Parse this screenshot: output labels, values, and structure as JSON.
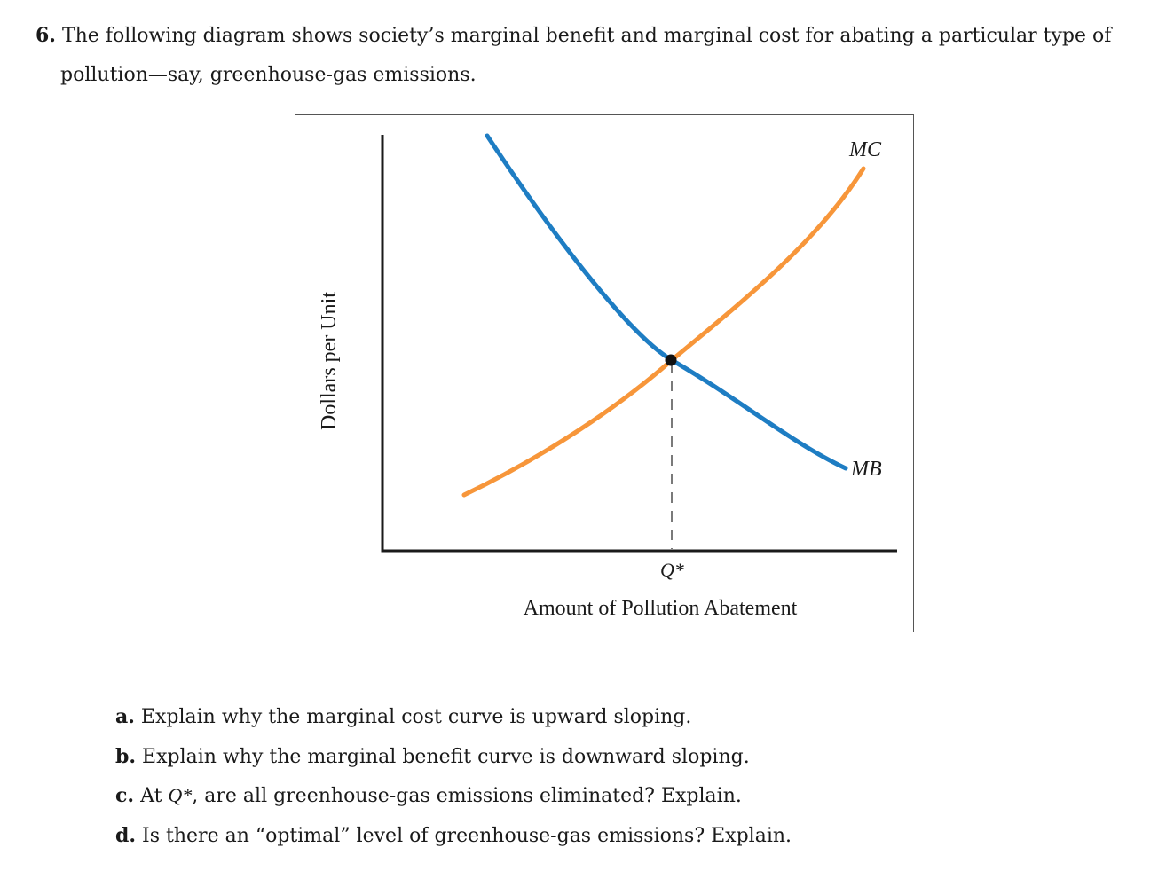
{
  "question": {
    "number": "6.",
    "line1": "The following diagram shows society’s marginal benefit and marginal cost for abating a particular type of",
    "line2": "pollution—say, greenhouse-gas emissions."
  },
  "figure": {
    "y_axis_label": "Dollars per Unit",
    "x_axis_label": "Amount of Pollution Abatement",
    "q_star_label": "Q*",
    "mc_label": "MC",
    "mb_label": "MB",
    "colors": {
      "mc": "#f7963a",
      "mb": "#1e7dc3",
      "axis": "#1a1a1a"
    }
  },
  "parts": [
    {
      "letter": "a.",
      "text": "Explain why the marginal cost curve is upward sloping."
    },
    {
      "letter": "b.",
      "text": "Explain why the marginal benefit curve is downward sloping."
    },
    {
      "letter": "c.",
      "pre": "At",
      "qstar": "Q*",
      "text": ", are all greenhouse-gas emissions eliminated? Explain."
    },
    {
      "letter": "d.",
      "text": "Is there an “optimal” level of greenhouse-gas emissions? Explain."
    }
  ]
}
